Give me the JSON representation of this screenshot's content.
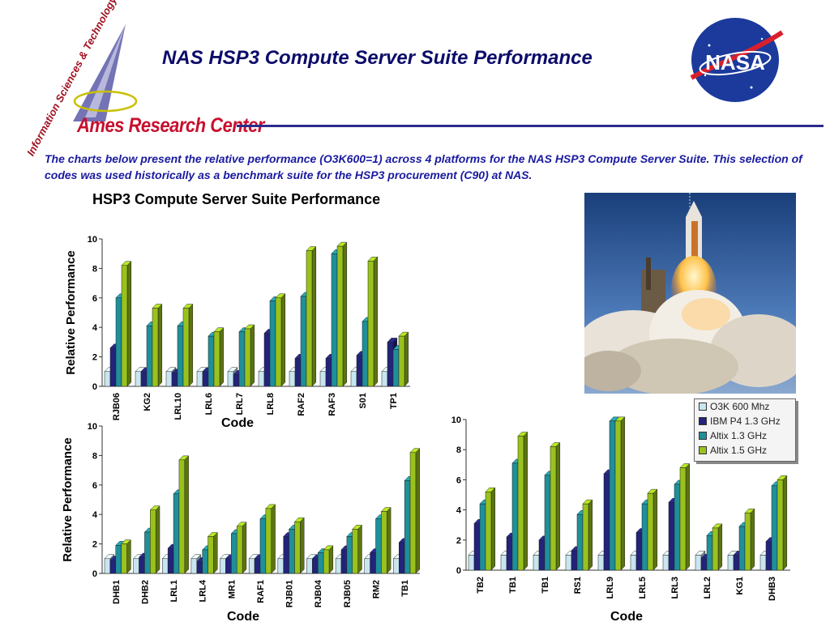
{
  "header": {
    "title": "NAS HSP3 Compute Server Suite Performance",
    "logo_text": "Ames Research Center",
    "logo_arc_text": "Information Sciences & Technology",
    "nasa_text": "NASA"
  },
  "intro_text": "The charts below present the relative performance (O3K600=1) across 4 platforms for the NAS HSP3 Compute Server Suite. This selection of codes was used historically as a benchmark suite for the HSP3 procurement (C90) at NAS.",
  "chart_title": "HSP3 Compute Server Suite Performance",
  "legend": {
    "items": [
      "O3K 600 Mhz",
      "IBM P4 1.3 GHz",
      "Altix 1.3 GHz",
      "Altix 1.5 GHz"
    ],
    "colors": [
      "#c8e6ef",
      "#23237a",
      "#1f8f9a",
      "#99c21c"
    ]
  },
  "chart_data": [
    {
      "type": "bar",
      "categories": [
        "RJB06",
        "KG2",
        "LRL10",
        "LRL6",
        "LRL7",
        "LRL8",
        "RAF2",
        "RAF3",
        "S01",
        "TP1"
      ],
      "series": [
        {
          "name": "O3K 600 Mhz",
          "values": [
            1,
            1,
            1,
            1,
            1,
            1,
            1,
            1,
            1,
            1
          ]
        },
        {
          "name": "IBM P4 1.3 GHz",
          "values": [
            2.6,
            1.0,
            0.9,
            1.0,
            0.8,
            3.6,
            1.9,
            1.9,
            2.1,
            3.0
          ]
        },
        {
          "name": "Altix 1.3 GHz",
          "values": [
            6.0,
            4.1,
            4.1,
            3.4,
            3.7,
            5.8,
            6.1,
            9.0,
            4.4,
            2.5
          ]
        },
        {
          "name": "Altix 1.5 GHz",
          "values": [
            8.2,
            5.3,
            5.3,
            3.7,
            3.9,
            6.0,
            9.2,
            9.5,
            8.5,
            3.4
          ]
        }
      ],
      "xlabel": "Code",
      "ylabel": "Relative Performance",
      "ylim": [
        0,
        10
      ],
      "yticks": [
        0,
        2,
        4,
        6,
        8,
        10
      ]
    },
    {
      "type": "bar",
      "categories": [
        "DHB1",
        "DHB2",
        "LRL1",
        "LRL4",
        "MR1",
        "RAF1",
        "RJB01",
        "RJB04",
        "RJB05",
        "RM2",
        "TB1"
      ],
      "series": [
        {
          "name": "O3K 600 Mhz",
          "values": [
            1,
            1,
            1,
            1,
            1,
            1,
            1,
            1,
            1,
            1,
            1
          ]
        },
        {
          "name": "IBM P4 1.3 GHz",
          "values": [
            0.9,
            1.1,
            1.7,
            0.8,
            1.0,
            1.0,
            2.5,
            1.0,
            1.6,
            1.4,
            2.1
          ]
        },
        {
          "name": "Altix 1.3 GHz",
          "values": [
            1.9,
            2.8,
            5.4,
            1.6,
            2.7,
            3.7,
            3.0,
            1.4,
            2.5,
            3.7,
            6.3
          ]
        },
        {
          "name": "Altix 1.5 GHz",
          "values": [
            2.0,
            4.3,
            7.7,
            2.5,
            3.2,
            4.4,
            3.5,
            1.6,
            3.0,
            4.2,
            8.2
          ]
        }
      ],
      "xlabel": "Code",
      "ylabel": "Relative Performance",
      "ylim": [
        0,
        10
      ],
      "yticks": [
        0,
        2,
        4,
        6,
        8,
        10
      ]
    },
    {
      "type": "bar",
      "categories": [
        "TB2",
        "TB1",
        "TB1",
        "RS1",
        "LRL9",
        "LRL5",
        "LRL3",
        "LRL2",
        "KG1",
        "DHB3"
      ],
      "series": [
        {
          "name": "O3K 600 Mhz",
          "values": [
            1,
            1,
            1,
            1,
            1,
            1,
            1,
            1,
            1,
            1
          ]
        },
        {
          "name": "IBM P4 1.3 GHz",
          "values": [
            3.1,
            2.2,
            2.0,
            1.3,
            6.4,
            2.5,
            4.5,
            0.8,
            1.0,
            1.9
          ]
        },
        {
          "name": "Altix 1.3 GHz",
          "values": [
            4.4,
            7.1,
            6.3,
            3.7,
            9.9,
            4.4,
            5.7,
            2.3,
            2.9,
            5.6
          ]
        },
        {
          "name": "Altix 1.5 GHz",
          "values": [
            5.2,
            8.9,
            8.2,
            4.4,
            9.9,
            5.1,
            6.8,
            2.8,
            3.8,
            6.0
          ]
        }
      ],
      "xlabel": "Code",
      "ylabel": "",
      "ylim": [
        0,
        10
      ],
      "yticks": [
        0,
        2,
        4,
        6,
        8,
        10
      ]
    }
  ]
}
